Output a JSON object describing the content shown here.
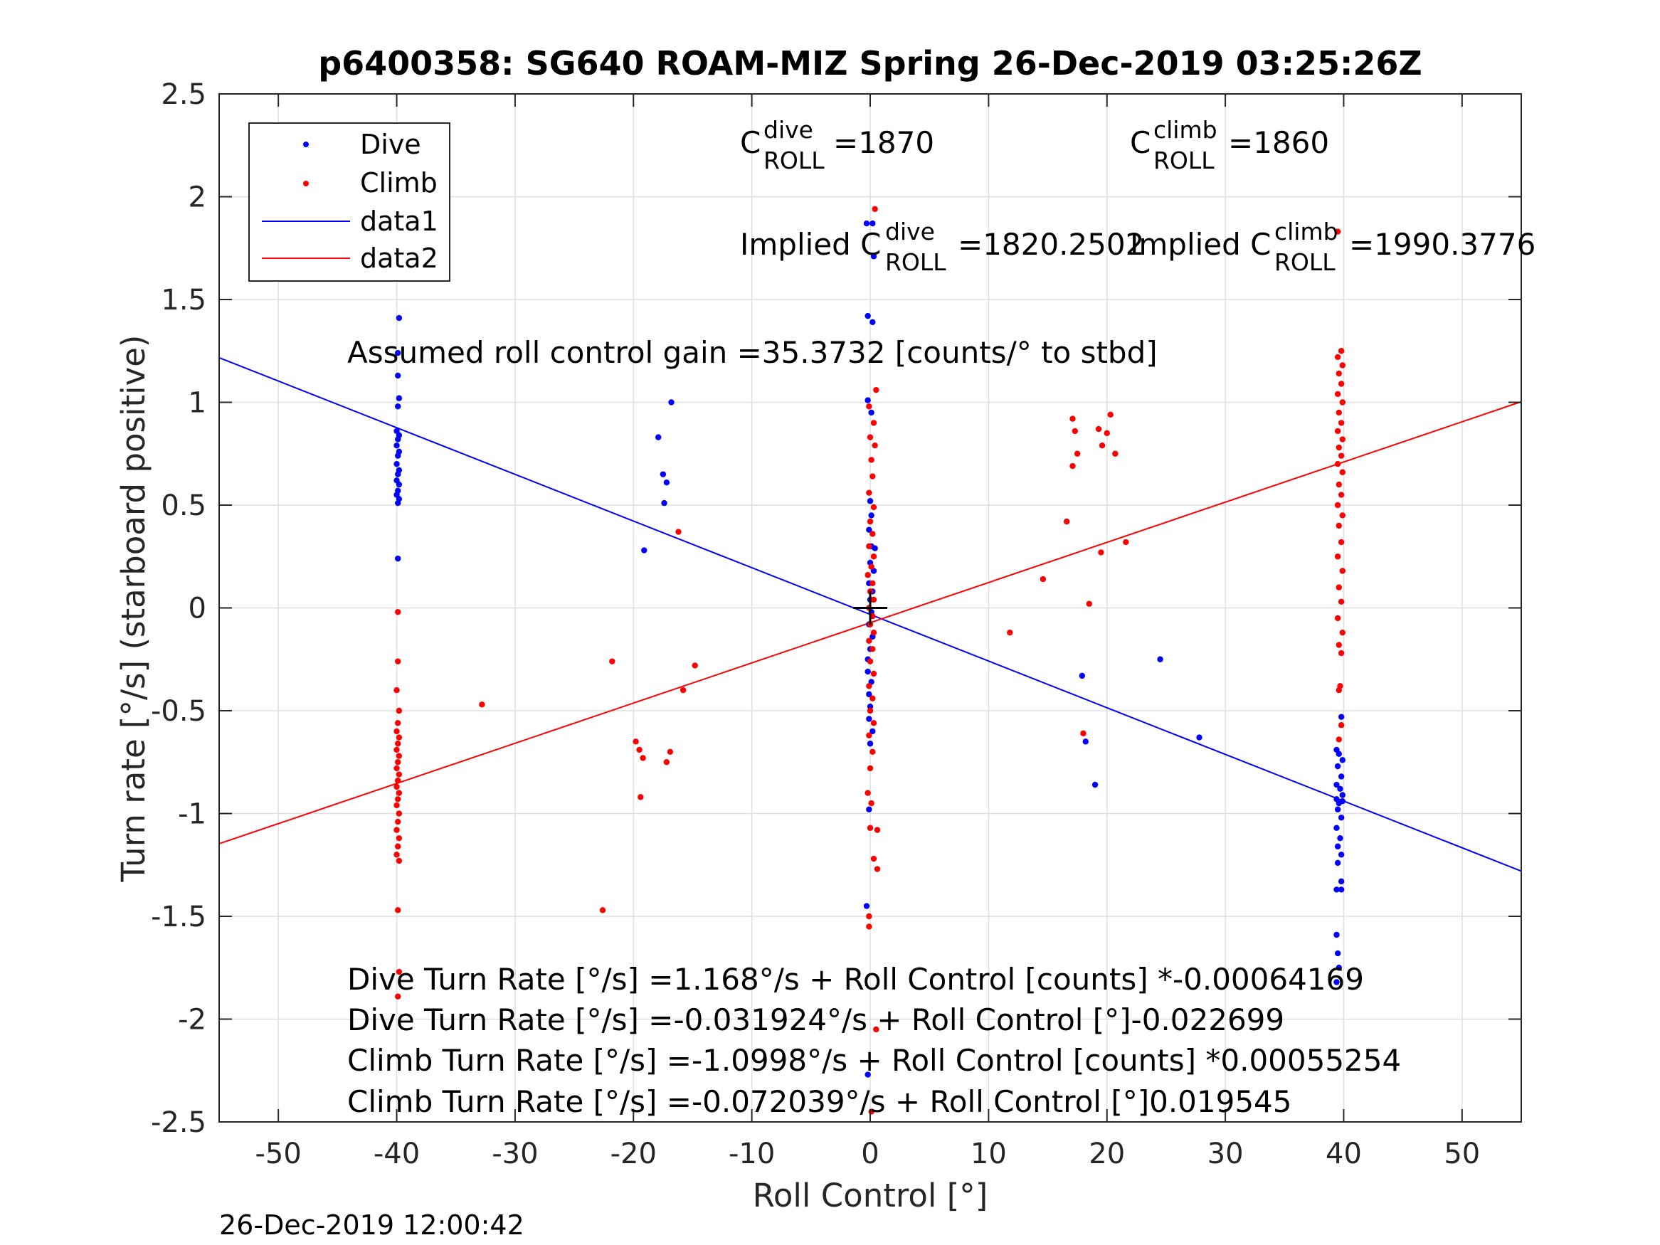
{
  "title": "p6400358: SG640 ROAM-MIZ Spring 26-Dec-2019 03:25:26Z",
  "timestamp": "26-Dec-2019 12:00:42",
  "colors": {
    "dive": "#0000ff",
    "climb": "#ff0000",
    "grid": "#dfdfdf",
    "axis": "#262626",
    "marker": "#000000"
  },
  "chart_data": {
    "type": "scatter",
    "title": "p6400358: SG640 ROAM-MIZ Spring 26-Dec-2019 03:25:26Z",
    "xlabel": "Roll Control [°]",
    "ylabel": "Turn rate [°/s] (starboard positive)",
    "xlim": [
      -55,
      55
    ],
    "ylim": [
      -2.5,
      2.5
    ],
    "xticks": [
      -50,
      -40,
      -30,
      -20,
      -10,
      0,
      10,
      20,
      30,
      40,
      50
    ],
    "xtick_labels": [
      "-50",
      "-40",
      "-30",
      "-20",
      "-10",
      "0",
      "10",
      "20",
      "30",
      "40",
      "50"
    ],
    "yticks": [
      2.5,
      2,
      1.5,
      1,
      0.5,
      0,
      -0.5,
      -1,
      -1.5,
      -2,
      -2.5
    ],
    "ytick_labels": [
      "2.5",
      "2",
      "1.5",
      "1",
      "0.5",
      "0",
      "-0.5",
      "-1",
      "-1.5",
      "-2",
      "-2.5"
    ],
    "grid": true,
    "legend": {
      "position": "top-left",
      "entries": [
        {
          "label": "Dive",
          "kind": "marker",
          "color": "#0000ff"
        },
        {
          "label": "Climb",
          "kind": "marker",
          "color": "#ff0000"
        },
        {
          "label": "data1",
          "kind": "line",
          "color": "#0000ff"
        },
        {
          "label": "data2",
          "kind": "line",
          "color": "#ff0000"
        }
      ]
    },
    "series": [
      {
        "name": "Dive",
        "kind": "scatter",
        "color": "#0000ff",
        "points": [
          [
            -39.8,
            1.41
          ],
          [
            -39.9,
            1.24
          ],
          [
            -39.9,
            1.13
          ],
          [
            -39.8,
            1.02
          ],
          [
            -39.9,
            0.98
          ],
          [
            -40.0,
            0.86
          ],
          [
            -39.8,
            0.84
          ],
          [
            -39.9,
            0.82
          ],
          [
            -40.0,
            0.79
          ],
          [
            -39.8,
            0.76
          ],
          [
            -39.9,
            0.74
          ],
          [
            -40.0,
            0.7
          ],
          [
            -39.8,
            0.67
          ],
          [
            -39.9,
            0.65
          ],
          [
            -40.0,
            0.62
          ],
          [
            -39.8,
            0.6
          ],
          [
            -39.9,
            0.57
          ],
          [
            -40.0,
            0.55
          ],
          [
            -39.8,
            0.53
          ],
          [
            -39.9,
            0.51
          ],
          [
            -39.9,
            0.24
          ],
          [
            -16.8,
            1.0
          ],
          [
            -17.9,
            0.83
          ],
          [
            -17.5,
            0.65
          ],
          [
            -17.2,
            0.61
          ],
          [
            -17.4,
            0.51
          ],
          [
            -19.1,
            0.28
          ],
          [
            -0.3,
            1.87
          ],
          [
            0.2,
            1.87
          ],
          [
            0.3,
            1.71
          ],
          [
            -0.2,
            1.42
          ],
          [
            0.2,
            1.39
          ],
          [
            -0.2,
            1.01
          ],
          [
            0.1,
            0.95
          ],
          [
            0.0,
            0.52
          ],
          [
            0.1,
            0.45
          ],
          [
            -0.1,
            0.38
          ],
          [
            0.1,
            0.3
          ],
          [
            0.4,
            0.29
          ],
          [
            0.0,
            0.22
          ],
          [
            0.3,
            0.18
          ],
          [
            -0.1,
            0.12
          ],
          [
            0.2,
            0.08
          ],
          [
            0.0,
            0.04
          ],
          [
            0.1,
            -0.02
          ],
          [
            -0.1,
            -0.08
          ],
          [
            0.2,
            -0.14
          ],
          [
            0.0,
            -0.2
          ],
          [
            -0.2,
            -0.25
          ],
          [
            -0.2,
            -0.31
          ],
          [
            0.1,
            -0.36
          ],
          [
            -0.1,
            -0.42
          ],
          [
            0.0,
            -0.48
          ],
          [
            -0.1,
            -0.54
          ],
          [
            0.2,
            -0.6
          ],
          [
            0.0,
            -0.66
          ],
          [
            -0.1,
            -0.98
          ],
          [
            -0.3,
            -1.45
          ],
          [
            -0.2,
            -2.27
          ],
          [
            17.9,
            -0.33
          ],
          [
            18.2,
            -0.65
          ],
          [
            19.0,
            -0.86
          ],
          [
            24.5,
            -0.25
          ],
          [
            27.8,
            -0.63
          ],
          [
            39.8,
            -0.53
          ],
          [
            39.4,
            -0.69
          ],
          [
            39.6,
            -0.71
          ],
          [
            39.9,
            -0.74
          ],
          [
            39.5,
            -0.77
          ],
          [
            39.8,
            -0.82
          ],
          [
            39.4,
            -0.86
          ],
          [
            39.7,
            -0.88
          ],
          [
            39.9,
            -0.91
          ],
          [
            39.4,
            -0.93
          ],
          [
            39.6,
            -0.95
          ],
          [
            39.9,
            -0.94
          ],
          [
            39.5,
            -0.98
          ],
          [
            39.8,
            -1.02
          ],
          [
            39.4,
            -1.07
          ],
          [
            39.7,
            -1.12
          ],
          [
            39.5,
            -1.16
          ],
          [
            39.8,
            -1.2
          ],
          [
            39.5,
            -1.24
          ],
          [
            39.8,
            -1.33
          ],
          [
            39.4,
            -1.37
          ],
          [
            39.8,
            -1.37
          ],
          [
            39.4,
            -1.59
          ],
          [
            39.5,
            -1.68
          ],
          [
            39.6,
            -1.75
          ],
          [
            39.4,
            -1.82
          ]
        ]
      },
      {
        "name": "Climb",
        "kind": "scatter",
        "color": "#ff0000",
        "points": [
          [
            -39.9,
            -0.02
          ],
          [
            -39.9,
            -0.26
          ],
          [
            -40.0,
            -0.4
          ],
          [
            -39.8,
            -0.5
          ],
          [
            -39.9,
            -0.56
          ],
          [
            -40.0,
            -0.6
          ],
          [
            -39.8,
            -0.63
          ],
          [
            -39.9,
            -0.66
          ],
          [
            -40.0,
            -0.69
          ],
          [
            -39.8,
            -0.72
          ],
          [
            -39.9,
            -0.75
          ],
          [
            -40.0,
            -0.78
          ],
          [
            -39.8,
            -0.81
          ],
          [
            -39.9,
            -0.84
          ],
          [
            -40.0,
            -0.87
          ],
          [
            -39.8,
            -0.9
          ],
          [
            -39.9,
            -0.93
          ],
          [
            -40.0,
            -0.96
          ],
          [
            -39.8,
            -1.0
          ],
          [
            -39.9,
            -1.04
          ],
          [
            -40.0,
            -1.08
          ],
          [
            -39.8,
            -1.12
          ],
          [
            -39.9,
            -1.16
          ],
          [
            -40.0,
            -1.2
          ],
          [
            -39.8,
            -1.23
          ],
          [
            -39.9,
            -1.47
          ],
          [
            -39.9,
            -1.89
          ],
          [
            -39.8,
            -1.77
          ],
          [
            -32.8,
            -0.47
          ],
          [
            -21.8,
            -0.26
          ],
          [
            -22.6,
            -1.47
          ],
          [
            -19.8,
            -0.65
          ],
          [
            -19.5,
            -0.69
          ],
          [
            -19.2,
            -0.73
          ],
          [
            -19.4,
            -0.92
          ],
          [
            -17.2,
            -0.75
          ],
          [
            -16.9,
            -0.7
          ],
          [
            -15.8,
            -0.4
          ],
          [
            -14.8,
            -0.28
          ],
          [
            -16.2,
            0.37
          ],
          [
            0.4,
            1.94
          ],
          [
            0.5,
            1.06
          ],
          [
            -0.1,
            0.98
          ],
          [
            0.3,
            0.9
          ],
          [
            0.0,
            0.83
          ],
          [
            0.4,
            0.79
          ],
          [
            0.1,
            0.72
          ],
          [
            0.2,
            0.64
          ],
          [
            -0.1,
            0.56
          ],
          [
            0.3,
            0.49
          ],
          [
            0.0,
            0.42
          ],
          [
            0.2,
            0.36
          ],
          [
            -0.1,
            0.3
          ],
          [
            0.3,
            0.25
          ],
          [
            0.1,
            0.2
          ],
          [
            -0.2,
            0.16
          ],
          [
            0.2,
            0.12
          ],
          [
            0.0,
            0.08
          ],
          [
            0.3,
            0.04
          ],
          [
            -0.1,
            0.0
          ],
          [
            0.2,
            -0.04
          ],
          [
            0.0,
            -0.08
          ],
          [
            0.3,
            -0.12
          ],
          [
            -0.1,
            -0.16
          ],
          [
            0.2,
            -0.2
          ],
          [
            0.0,
            -0.26
          ],
          [
            0.3,
            -0.32
          ],
          [
            -0.1,
            -0.38
          ],
          [
            0.2,
            -0.44
          ],
          [
            0.0,
            -0.5
          ],
          [
            0.3,
            -0.56
          ],
          [
            -0.1,
            -0.62
          ],
          [
            0.2,
            -0.7
          ],
          [
            0.0,
            -0.78
          ],
          [
            -0.2,
            -0.9
          ],
          [
            0.1,
            -0.95
          ],
          [
            0.0,
            -1.07
          ],
          [
            0.3,
            -1.22
          ],
          [
            0.6,
            -1.27
          ],
          [
            0.6,
            -1.08
          ],
          [
            -0.1,
            -1.5
          ],
          [
            -0.1,
            -1.55
          ],
          [
            0.5,
            -2.05
          ],
          [
            0.1,
            -2.45
          ],
          [
            11.8,
            -0.12
          ],
          [
            14.6,
            0.14
          ],
          [
            16.6,
            0.42
          ],
          [
            17.1,
            0.92
          ],
          [
            17.3,
            0.86
          ],
          [
            17.1,
            0.69
          ],
          [
            17.5,
            0.75
          ],
          [
            19.3,
            0.87
          ],
          [
            19.6,
            0.79
          ],
          [
            20.0,
            0.85
          ],
          [
            20.3,
            0.94
          ],
          [
            20.7,
            0.75
          ],
          [
            19.5,
            0.27
          ],
          [
            21.6,
            0.32
          ],
          [
            18.5,
            0.02
          ],
          [
            18.0,
            -0.61
          ],
          [
            39.8,
            1.25
          ],
          [
            39.5,
            1.22
          ],
          [
            39.9,
            1.18
          ],
          [
            39.6,
            1.14
          ],
          [
            39.8,
            1.09
          ],
          [
            39.5,
            1.04
          ],
          [
            39.9,
            1.0
          ],
          [
            39.6,
            0.95
          ],
          [
            39.8,
            0.9
          ],
          [
            39.5,
            0.86
          ],
          [
            39.9,
            0.82
          ],
          [
            39.6,
            0.78
          ],
          [
            39.8,
            0.74
          ],
          [
            39.5,
            0.7
          ],
          [
            39.9,
            0.66
          ],
          [
            39.6,
            0.6
          ],
          [
            39.8,
            0.55
          ],
          [
            39.5,
            0.5
          ],
          [
            39.9,
            0.45
          ],
          [
            39.6,
            0.4
          ],
          [
            39.8,
            0.32
          ],
          [
            39.5,
            0.25
          ],
          [
            39.9,
            0.18
          ],
          [
            39.6,
            0.1
          ],
          [
            39.8,
            0.03
          ],
          [
            39.5,
            -0.05
          ],
          [
            39.9,
            -0.12
          ],
          [
            39.6,
            -0.18
          ],
          [
            39.8,
            -0.22
          ],
          [
            39.7,
            -0.38
          ],
          [
            39.6,
            -0.4
          ],
          [
            39.8,
            -0.57
          ],
          [
            39.6,
            -0.64
          ],
          [
            39.5,
            1.83
          ]
        ]
      },
      {
        "name": "data1",
        "kind": "line",
        "color": "#0000ff",
        "points": [
          [
            -55,
            1.217
          ],
          [
            55,
            -1.28
          ]
        ]
      },
      {
        "name": "data2",
        "kind": "line",
        "color": "#ff0000",
        "points": [
          [
            -55,
            -1.147
          ],
          [
            55,
            1.003
          ]
        ]
      }
    ],
    "crosshair": [
      0,
      0
    ]
  },
  "annotations": {
    "c_dive_base": "C",
    "c_dive_sup": "dive",
    "c_dive_sub": "ROLL",
    "c_dive_value": "=1870",
    "c_climb_base": "C",
    "c_climb_sup": "climb",
    "c_climb_sub": "ROLL",
    "c_climb_value": "=1860",
    "implied_dive_prefix": "Implied C",
    "implied_dive_sup": "dive",
    "implied_dive_sub": "ROLL",
    "implied_dive_value": "=1820.2502",
    "implied_climb_prefix": "Implied C",
    "implied_climb_sup": "climb",
    "implied_climb_sub": "ROLL",
    "implied_climb_value": "=1990.3776",
    "gain": "Assumed roll control gain =35.3732 [counts/° to stbd]",
    "eq1": "Dive Turn Rate [°/s] =1.168°/s + Roll Control [counts] *-0.00064169",
    "eq2": "Dive Turn Rate [°/s] =-0.031924°/s + Roll Control [°]-0.022699",
    "eq3": "Climb Turn Rate [°/s] =-1.0998°/s + Roll Control [counts] *0.00055254",
    "eq4": "Climb Turn Rate [°/s] =-0.072039°/s + Roll Control [°]0.019545"
  }
}
